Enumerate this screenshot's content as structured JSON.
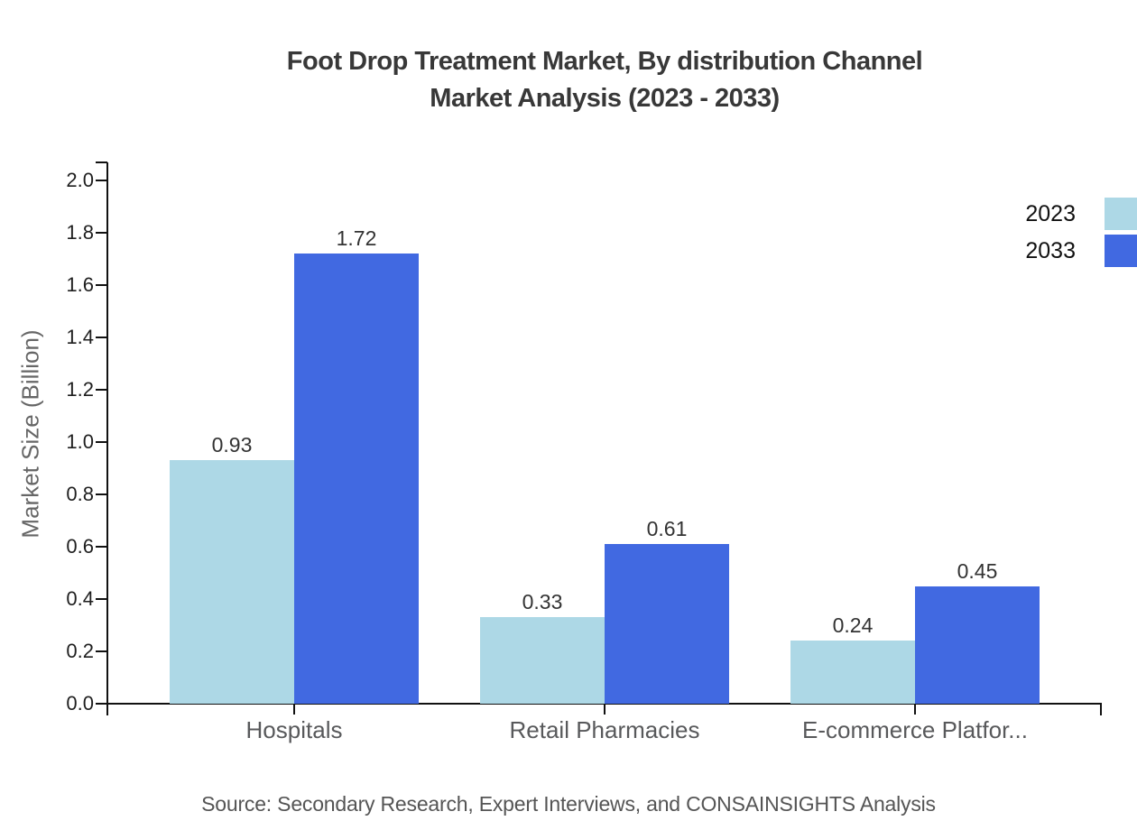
{
  "title": {
    "line1": "Foot Drop Treatment Market, By distribution Channel",
    "line2": "Market Analysis (2023 - 2033)"
  },
  "source": "Source: Secondary Research, Expert Interviews, and CONSAINSIGHTS Analysis",
  "chart_data": {
    "type": "bar",
    "title": "Foot Drop Treatment Market, By distribution Channel Market Analysis (2023 - 2033)",
    "categories": [
      "Hospitals",
      "Retail Pharmacies",
      "E-commerce Platfor..."
    ],
    "series": [
      {
        "name": "2023",
        "color": "#ADD8E6",
        "values": [
          0.93,
          0.33,
          0.24
        ]
      },
      {
        "name": "2033",
        "color": "#4169E1",
        "values": [
          1.72,
          0.61,
          0.45
        ]
      }
    ],
    "xlabel": "",
    "ylabel": "Market Size (Billion)",
    "ylim": [
      0.0,
      2.0
    ],
    "ytick_step": 0.2,
    "grid": false,
    "legend_position": "right-top",
    "value_labels": true
  }
}
